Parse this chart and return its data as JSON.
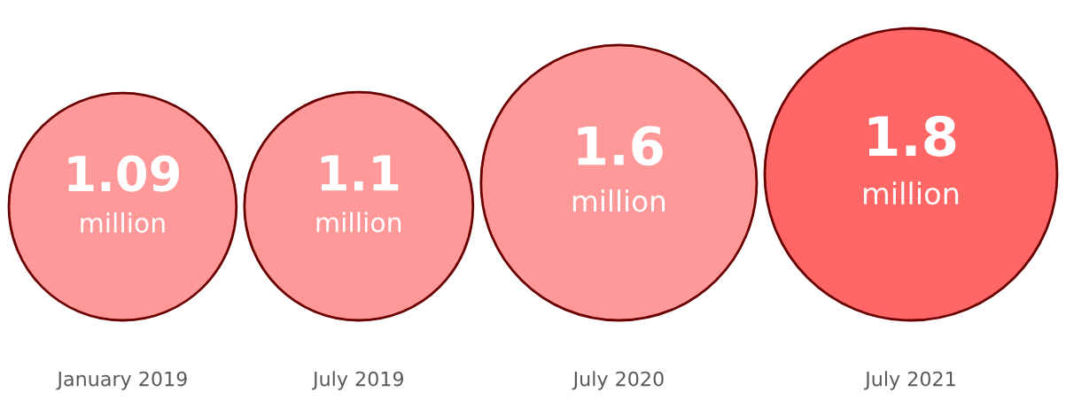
{
  "chart_data": {
    "type": "other",
    "categories": [
      "January 2019",
      "July 2019",
      "July 2020",
      "July 2021"
    ],
    "values": [
      1090000,
      1100000,
      1600000,
      1800000
    ],
    "value_labels": [
      "1.09\nmillion",
      "1.1\nmillion",
      "1.6\nmillion",
      "1.8\nmillion"
    ],
    "colors": [
      "#ff9999",
      "#ff9999",
      "#ff9999",
      "#ff6666"
    ]
  }
}
